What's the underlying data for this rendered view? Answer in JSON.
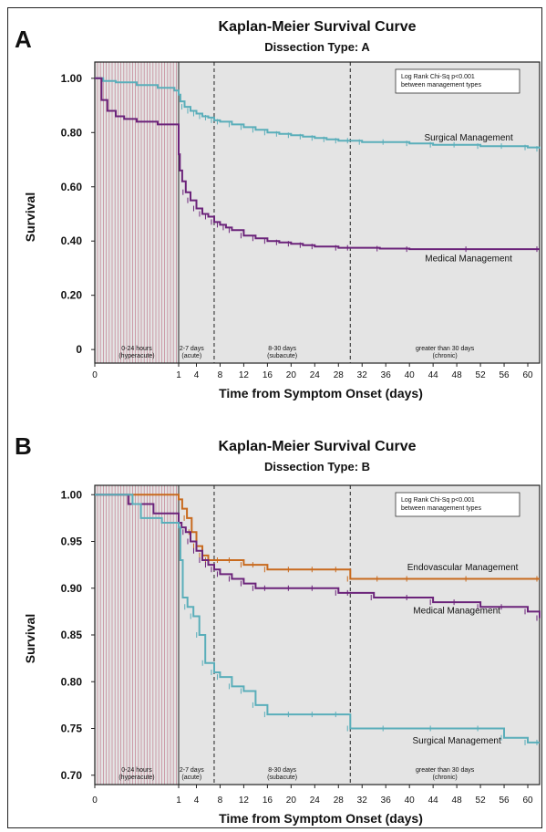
{
  "colors": {
    "surgical": "#5aaeba",
    "medical": "#6b237a",
    "endovascular": "#c86a1e",
    "hyperacute_hatch": "#c78a9a",
    "plot_bg": "#e4e4e4"
  },
  "x_axis_display": {
    "note": "first-day region (0 to 1 day) is expanded in hours; days 1 to 62 continue linearly",
    "tick_labels": [
      "0",
      "1",
      "4",
      "8",
      "12",
      "16",
      "20",
      "24",
      "28",
      "32",
      "36",
      "40",
      "44",
      "48",
      "52",
      "56",
      "60"
    ]
  },
  "chart_data": [
    {
      "panel_letter": "A",
      "type": "line",
      "title": "Kaplan-Meier Survival Curve",
      "subtitle": "Dissection Type:  A",
      "xlabel": "Time from Symptom Onset (days)",
      "ylabel": "Survival",
      "xlim": [
        0,
        62
      ],
      "ylim": [
        -0.05,
        1.06
      ],
      "y_tick_values": [
        0,
        0.2,
        0.4,
        0.6,
        0.8,
        1.0
      ],
      "y_tick_labels": [
        "0",
        "0.20",
        "0.40",
        "0.60",
        "0.80",
        "1.00"
      ],
      "annotation": [
        "Log Rank Chi-Sq p<0.001",
        "between management types"
      ],
      "annotation_position": "top-right",
      "grid": false,
      "phase_lines_days": [
        1,
        7,
        30
      ],
      "phases": [
        {
          "label": "0-24 hours",
          "sub": "(hyperacute)",
          "x": 0.5
        },
        {
          "label": "2-7 days",
          "sub": "(acute)",
          "x": 3.2
        },
        {
          "label": "8-30 days",
          "sub": "(subacute)",
          "x": 18.5
        },
        {
          "label": "greater than 30 days",
          "sub": "(chronic)",
          "x": 46
        }
      ],
      "series": [
        {
          "name": "Surgical Management",
          "color_key": "surgical",
          "label_pos": [
            50,
            0.78
          ],
          "x": [
            0,
            0.1,
            0.25,
            0.5,
            0.75,
            0.95,
            1,
            1.3,
            2,
            3,
            4,
            5,
            6,
            7,
            8,
            10,
            12,
            14,
            16,
            18,
            20,
            22,
            24,
            26,
            28,
            30,
            32,
            36,
            40,
            44,
            48,
            52,
            56,
            60,
            62
          ],
          "y": [
            1.0,
            0.99,
            0.985,
            0.975,
            0.965,
            0.955,
            0.94,
            0.915,
            0.895,
            0.88,
            0.87,
            0.86,
            0.855,
            0.845,
            0.84,
            0.83,
            0.82,
            0.81,
            0.8,
            0.795,
            0.79,
            0.785,
            0.78,
            0.775,
            0.77,
            0.77,
            0.765,
            0.765,
            0.76,
            0.755,
            0.755,
            0.75,
            0.75,
            0.745,
            0.74
          ]
        },
        {
          "name": "Medical Management",
          "color_key": "medical",
          "label_pos": [
            50,
            0.335
          ],
          "x": [
            0,
            0.08,
            0.15,
            0.25,
            0.35,
            0.5,
            0.75,
            1,
            1.2,
            1.6,
            2.2,
            3,
            4,
            5,
            6,
            7,
            8,
            9,
            10,
            12,
            14,
            16,
            18,
            20,
            22,
            24,
            28,
            30,
            35,
            40,
            50,
            62
          ],
          "y": [
            1.0,
            0.92,
            0.88,
            0.86,
            0.85,
            0.84,
            0.83,
            0.72,
            0.66,
            0.62,
            0.58,
            0.55,
            0.52,
            0.5,
            0.49,
            0.47,
            0.46,
            0.45,
            0.44,
            0.42,
            0.41,
            0.4,
            0.395,
            0.39,
            0.385,
            0.38,
            0.375,
            0.375,
            0.372,
            0.37,
            0.37,
            0.37
          ]
        }
      ]
    },
    {
      "panel_letter": "B",
      "type": "line",
      "title": "Kaplan-Meier Survival Curve",
      "subtitle": "Dissection Type:  B",
      "xlabel": "Time from Symptom Onset (days)",
      "ylabel": "Survival",
      "xlim": [
        0,
        62
      ],
      "ylim": [
        0.69,
        1.01
      ],
      "y_tick_values": [
        0.7,
        0.75,
        0.8,
        0.85,
        0.9,
        0.95,
        1.0
      ],
      "y_tick_labels": [
        "0.70",
        "0.75",
        "0.80",
        "0.85",
        "0.90",
        "0.95",
        "1.00"
      ],
      "annotation": [
        "Log Rank Chi-Sq p<0.001",
        "between management types"
      ],
      "annotation_position": "top-right",
      "grid": false,
      "phase_lines_days": [
        1,
        7,
        30
      ],
      "phases": [
        {
          "label": "0-24 hours",
          "sub": "(hyperacute)",
          "x": 0.5
        },
        {
          "label": "2-7 days",
          "sub": "(acute)",
          "x": 3.2
        },
        {
          "label": "8-30 days",
          "sub": "(subacute)",
          "x": 18.5
        },
        {
          "label": "greater than 30 days",
          "sub": "(chronic)",
          "x": 46
        }
      ],
      "series": [
        {
          "name": "Endovascular Management",
          "color_key": "endovascular",
          "label_pos": [
            49,
            0.922
          ],
          "x": [
            0,
            0.9,
            1,
            1.6,
            2.4,
            3.2,
            4,
            5,
            6,
            8,
            10,
            12,
            14,
            16,
            20,
            24,
            28,
            30,
            35,
            40,
            50,
            62
          ],
          "y": [
            1.0,
            1.0,
            0.995,
            0.985,
            0.975,
            0.96,
            0.945,
            0.935,
            0.93,
            0.93,
            0.93,
            0.925,
            0.925,
            0.92,
            0.92,
            0.92,
            0.92,
            0.91,
            0.91,
            0.91,
            0.91,
            0.91
          ]
        },
        {
          "name": "Medical Management",
          "color_key": "medical",
          "label_pos": [
            48,
            0.876
          ],
          "x": [
            0,
            0.4,
            0.7,
            1,
            1.5,
            2.2,
            3,
            4,
            5,
            6,
            7,
            8,
            10,
            12,
            14,
            16,
            20,
            24,
            28,
            30,
            34,
            40,
            44,
            48,
            52,
            56,
            60,
            62
          ],
          "y": [
            1.0,
            0.99,
            0.98,
            0.97,
            0.965,
            0.96,
            0.95,
            0.94,
            0.93,
            0.925,
            0.92,
            0.915,
            0.91,
            0.905,
            0.9,
            0.9,
            0.9,
            0.9,
            0.895,
            0.895,
            0.89,
            0.89,
            0.885,
            0.885,
            0.88,
            0.88,
            0.875,
            0.868
          ]
        },
        {
          "name": "Surgical Management",
          "color_key": "surgical",
          "label_pos": [
            48,
            0.737
          ],
          "x": [
            0,
            0.45,
            0.55,
            0.8,
            1,
            1.3,
            1.7,
            2.5,
            3.5,
            4.5,
            5.5,
            7,
            8,
            10,
            12,
            14,
            16,
            20,
            24,
            28,
            30,
            36,
            44,
            52,
            56,
            60,
            62
          ],
          "y": [
            1.0,
            0.99,
            0.975,
            0.97,
            0.965,
            0.93,
            0.89,
            0.88,
            0.87,
            0.85,
            0.82,
            0.81,
            0.805,
            0.795,
            0.79,
            0.775,
            0.765,
            0.765,
            0.765,
            0.765,
            0.75,
            0.75,
            0.75,
            0.75,
            0.74,
            0.735,
            0.735
          ]
        }
      ]
    }
  ]
}
